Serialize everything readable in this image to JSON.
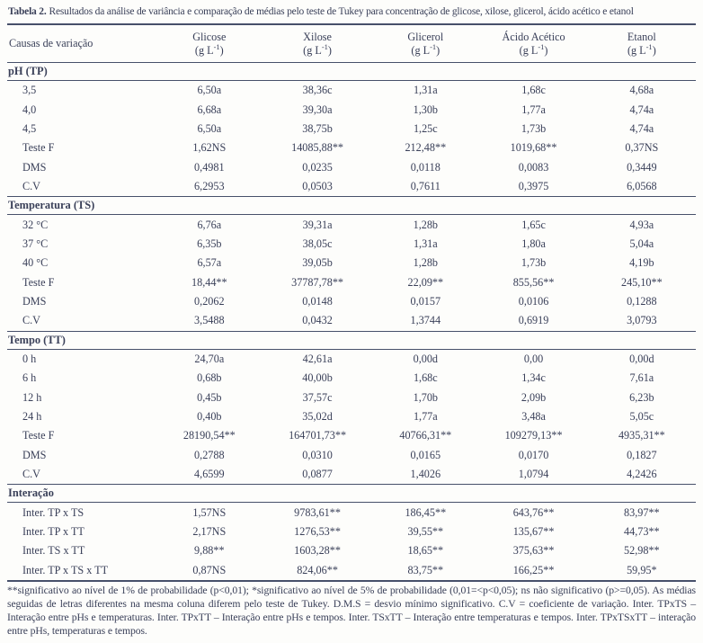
{
  "title": {
    "number": "Tabela 2.",
    "caption": "Resultados da análise de variância e comparação de médias pelo teste de Tukey para concentração de glicose, xilose, glicerol, ácido acético e etanol"
  },
  "colors": {
    "text": "#3a4059",
    "line": "#47506a",
    "background": "#fdfdfb"
  },
  "columns": [
    {
      "name": "Causas de variação"
    },
    {
      "name": "Glicose",
      "unit_pre": "(g L",
      "unit_sup": "-1",
      "unit_post": ")"
    },
    {
      "name": "Xilose",
      "unit_pre": "(g L",
      "unit_sup": "-1",
      "unit_post": ")"
    },
    {
      "name": "Glicerol",
      "unit_pre": "(g L",
      "unit_sup": "-1",
      "unit_post": ")"
    },
    {
      "name": "Ácido Acético",
      "unit_pre": "(g L",
      "unit_sup": "-1",
      "unit_post": ")"
    },
    {
      "name": "Etanol",
      "unit_pre": "(g L",
      "unit_sup": "-1",
      "unit_post": ")"
    }
  ],
  "sections": [
    {
      "header": "pH (TP)",
      "rows": [
        {
          "label": "3,5",
          "values": [
            "6,50a",
            "38,36c",
            "1,31a",
            "1,68c",
            "4,68a"
          ]
        },
        {
          "label": "4,0",
          "values": [
            "6,68a",
            "39,30a",
            "1,30b",
            "1,77a",
            "4,74a"
          ]
        },
        {
          "label": "4,5",
          "values": [
            "6,50a",
            "38,75b",
            "1,25c",
            "1,73b",
            "4,74a"
          ]
        },
        {
          "label": "Teste F",
          "values": [
            "1,62NS",
            "14085,88**",
            "212,48**",
            "1019,68**",
            "0,37NS"
          ]
        },
        {
          "label": "DMS",
          "values": [
            "0,4981",
            "0,0235",
            "0,0118",
            "0,0083",
            "0,3449"
          ]
        },
        {
          "label": "C.V",
          "values": [
            "6,2953",
            "0,0503",
            "0,7611",
            "0,3975",
            "6,0568"
          ]
        }
      ]
    },
    {
      "header": "Temperatura (TS)",
      "rows": [
        {
          "label": "32 °C",
          "values": [
            "6,76a",
            "39,31a",
            "1,28b",
            "1,65c",
            "4,93a"
          ]
        },
        {
          "label": "37 °C",
          "values": [
            "6,35b",
            "38,05c",
            "1,31a",
            "1,80a",
            "5,04a"
          ]
        },
        {
          "label": "40 °C",
          "values": [
            "6,57a",
            "39,05b",
            "1,28b",
            "1,73b",
            "4,19b"
          ]
        },
        {
          "label": "Teste F",
          "values": [
            "18,44**",
            "37787,78**",
            "22,09**",
            "855,56**",
            "245,10**"
          ]
        },
        {
          "label": "DMS",
          "values": [
            "0,2062",
            "0,0148",
            "0,0157",
            "0,0106",
            "0,1288"
          ]
        },
        {
          "label": "C.V",
          "values": [
            "3,5488",
            "0,0432",
            "1,3744",
            "0,6919",
            "3,0793"
          ]
        }
      ]
    },
    {
      "header": "Tempo (TT)",
      "rows": [
        {
          "label": "0 h",
          "values": [
            "24,70a",
            "42,61a",
            "0,00d",
            "0,00",
            "0,00d"
          ]
        },
        {
          "label": "6 h",
          "values": [
            "0,68b",
            "40,00b",
            "1,68c",
            "1,34c",
            "7,61a"
          ]
        },
        {
          "label": "12 h",
          "values": [
            "0,45b",
            "37,57c",
            "1,70b",
            "2,09b",
            "6,23b"
          ]
        },
        {
          "label": "24 h",
          "values": [
            "0,40b",
            "35,02d",
            "1,77a",
            "3,48a",
            "5,05c"
          ]
        },
        {
          "label": "Teste F",
          "values": [
            "28190,54**",
            "164701,73**",
            "40766,31**",
            "109279,13**",
            "4935,31**"
          ]
        },
        {
          "label": "DMS",
          "values": [
            "0,2788",
            "0,0310",
            "0,0165",
            "0,0170",
            "0,1827"
          ]
        },
        {
          "label": "C.V",
          "values": [
            "4,6599",
            "0,0877",
            "1,4026",
            "1,0794",
            "4,2426"
          ]
        }
      ]
    },
    {
      "header": "Interação",
      "rows": [
        {
          "label": "Inter. TP x TS",
          "values": [
            "1,57NS",
            "9783,61**",
            "186,45**",
            "643,76**",
            "83,97**"
          ]
        },
        {
          "label": "Inter. TP x TT",
          "values": [
            "2,17NS",
            "1276,53**",
            "39,55**",
            "135,67**",
            "44,73**"
          ]
        },
        {
          "label": "Inter. TS x TT",
          "values": [
            "9,88**",
            "1603,28**",
            "18,65**",
            "375,63**",
            "52,98**"
          ]
        },
        {
          "label": "Inter. TP x TS x TT",
          "values": [
            "0,87NS",
            "824,06**",
            "83,75**",
            "166,25**",
            "59,95*"
          ]
        }
      ]
    }
  ],
  "footnote": {
    "text": "**significativo ao nível de 1% de probabilidade (p<0,01); *significativo ao nível de 5% de probabilidade (0,01=<p<0,05); ns não significativo (p>=0,05). As médias seguidas de letras diferentes na mesma coluna diferem pelo teste de Tukey. D.M.S = desvio mínimo significativo. C.V = coeficiente de variação. Inter. TPxTS – Interação entre pHs e temperaturas. Inter. TPxTT – Interação entre pHs e tempos. Inter. TSxTT – Interação entre temperaturas e tempos. Inter. TPxTSxTT – interação entre pHs, temperaturas e tempos."
  }
}
